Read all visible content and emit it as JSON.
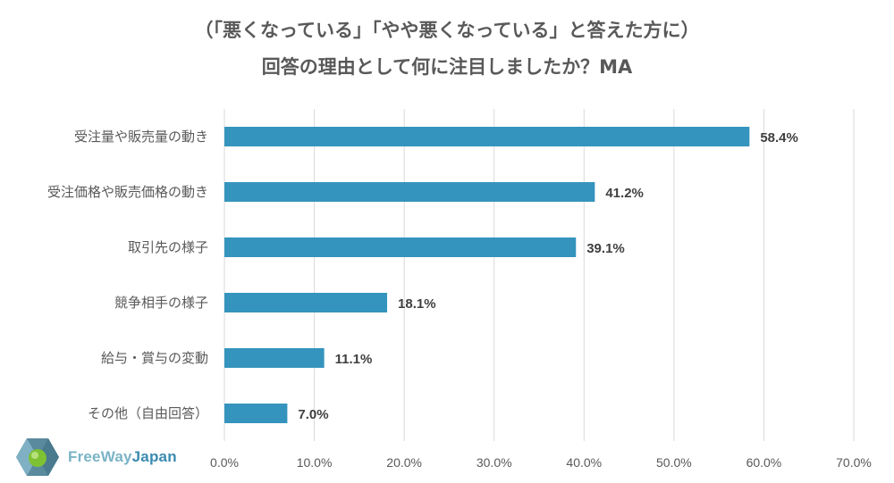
{
  "title": {
    "line1": "（「悪くなっている」「やや悪くなっている」と答えた方に）",
    "line2": "回答の理由として何に注目しましたか？MA"
  },
  "logo": {
    "text_a": "FreeWay",
    "text_b": "Japan",
    "icon": "freeway-japan-logo-icon"
  },
  "colors": {
    "bar": "#3594bd",
    "grid": "#d9d9d9",
    "text": "#595959",
    "label": "#404040"
  },
  "chart_data": {
    "type": "bar",
    "orientation": "horizontal",
    "title": "（「悪くなっている」「やや悪くなっている」と答えた方に） 回答の理由として何に注目しましたか？MA",
    "categories": [
      "受注量や販売量の動き",
      "受注価格や販売価格の動き",
      "取引先の様子",
      "競争相手の様子",
      "給与・賞与の変動",
      "その他（自由回答）"
    ],
    "values": [
      58.4,
      41.2,
      39.1,
      18.1,
      11.1,
      7.0
    ],
    "value_labels": [
      "58.4%",
      "41.2%",
      "39.1%",
      "18.1%",
      "11.1%",
      "7.0%"
    ],
    "xlim": [
      0,
      70
    ],
    "xticks": [
      0,
      10,
      20,
      30,
      40,
      50,
      60,
      70
    ],
    "xtick_labels": [
      "0.0%",
      "10.0%",
      "20.0%",
      "30.0%",
      "40.0%",
      "50.0%",
      "60.0%",
      "70.0%"
    ],
    "grid": true,
    "legend": "none"
  }
}
